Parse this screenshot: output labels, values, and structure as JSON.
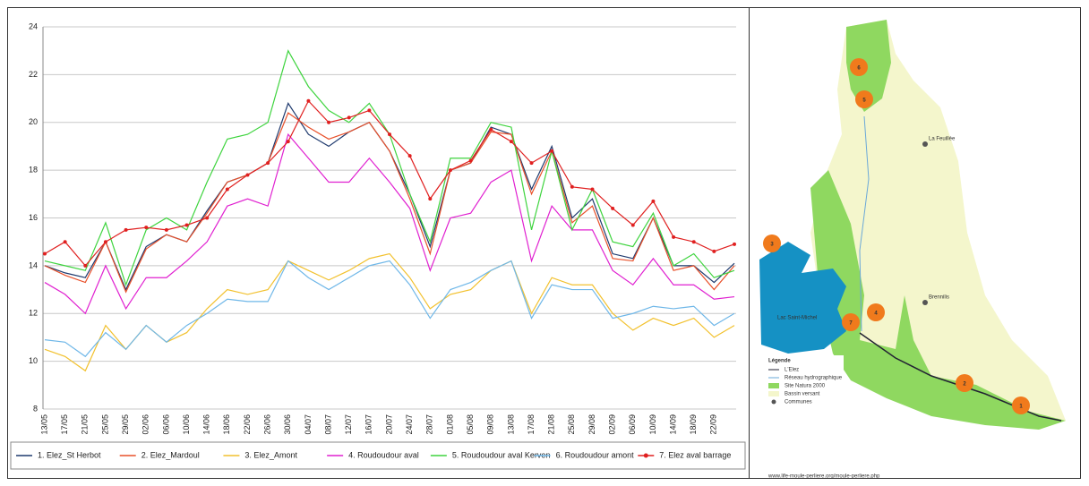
{
  "chart_data": {
    "type": "line",
    "categories": [
      "13/05",
      "17/05",
      "21/05",
      "25/05",
      "29/05",
      "02/06",
      "06/06",
      "10/06",
      "14/06",
      "18/06",
      "22/06",
      "26/06",
      "30/06",
      "04/07",
      "08/07",
      "12/07",
      "16/07",
      "20/07",
      "24/07",
      "28/07",
      "01/08",
      "05/08",
      "09/08",
      "13/08",
      "17/08",
      "21/08",
      "25/08",
      "29/08",
      "02/09",
      "06/09",
      "10/09",
      "14/09",
      "18/09",
      "22/09",
      null
    ],
    "ylim": [
      8,
      24
    ],
    "yticks": [
      8,
      10,
      12,
      14,
      16,
      18,
      20,
      22,
      24
    ],
    "grid": true,
    "legend": "bottom",
    "series": [
      {
        "name": "1. Elez_St Herbot",
        "color": "#1f3a6e",
        "markers": false,
        "values": [
          14.0,
          13.7,
          13.5,
          15.0,
          13.0,
          14.8,
          15.3,
          15.0,
          16.3,
          17.5,
          17.8,
          18.3,
          20.8,
          19.5,
          19.0,
          19.6,
          20.0,
          18.8,
          17.0,
          14.8,
          18.0,
          18.3,
          19.8,
          19.5,
          17.2,
          19.0,
          16.0,
          16.8,
          14.5,
          14.3,
          16.0,
          14.0,
          14.0,
          13.3,
          14.1
        ]
      },
      {
        "name": "2. Elez_Mardoul",
        "color": "#e8502a",
        "markers": false,
        "values": [
          14.0,
          13.6,
          13.3,
          15.0,
          12.9,
          14.7,
          15.3,
          15.0,
          16.2,
          17.5,
          17.8,
          18.3,
          20.4,
          19.8,
          19.3,
          19.6,
          20.0,
          18.8,
          16.8,
          14.5,
          18.0,
          18.3,
          19.6,
          19.5,
          17.0,
          18.8,
          15.8,
          16.5,
          14.3,
          14.2,
          16.0,
          13.8,
          14.0,
          13.0,
          14.0
        ]
      },
      {
        "name": "3. Elez_Amont",
        "color": "#f2c12e",
        "markers": false,
        "values": [
          10.5,
          10.2,
          9.6,
          11.5,
          10.5,
          11.5,
          10.8,
          11.2,
          12.2,
          13.0,
          12.8,
          13.0,
          14.2,
          13.8,
          13.4,
          13.8,
          14.3,
          14.5,
          13.5,
          12.2,
          12.8,
          13.0,
          13.8,
          14.2,
          12.0,
          13.5,
          13.2,
          13.2,
          12.0,
          11.3,
          11.8,
          11.5,
          11.8,
          11.0,
          11.5
        ]
      },
      {
        "name": "4. Roudoudour aval",
        "color": "#e020d0",
        "markers": false,
        "values": [
          13.3,
          12.8,
          12.0,
          14.0,
          12.2,
          13.5,
          13.5,
          14.2,
          15.0,
          16.5,
          16.8,
          16.5,
          19.5,
          18.5,
          17.5,
          17.5,
          18.5,
          17.5,
          16.4,
          13.8,
          16.0,
          16.2,
          17.5,
          18.0,
          14.2,
          16.5,
          15.5,
          15.5,
          13.8,
          13.2,
          14.3,
          13.2,
          13.2,
          12.6,
          12.7
        ]
      },
      {
        "name": "5. Roudoudour aval Kerven",
        "color": "#3ed43e",
        "markers": false,
        "values": [
          14.2,
          14.0,
          13.8,
          15.8,
          13.2,
          15.5,
          16.0,
          15.5,
          17.5,
          19.3,
          19.5,
          20.0,
          23.0,
          21.5,
          20.5,
          20.0,
          20.8,
          19.5,
          17.0,
          15.0,
          18.5,
          18.5,
          20.0,
          19.8,
          15.5,
          18.8,
          15.5,
          17.2,
          15.0,
          14.8,
          16.2,
          14.0,
          14.5,
          13.5,
          13.8
        ]
      },
      {
        "name": "6. Roudoudour amont",
        "color": "#6fb7e8",
        "markers": false,
        "values": [
          10.9,
          10.8,
          10.2,
          11.2,
          10.5,
          11.5,
          10.8,
          11.5,
          12.0,
          12.6,
          12.5,
          12.5,
          14.2,
          13.5,
          13.0,
          13.5,
          14.0,
          14.2,
          13.2,
          11.8,
          13.0,
          13.3,
          13.8,
          14.2,
          11.8,
          13.2,
          13.0,
          13.0,
          11.8,
          12.0,
          12.3,
          12.2,
          12.3,
          11.5,
          12.0
        ]
      },
      {
        "name": "7. Elez aval barrage",
        "color": "#e02020",
        "markers": true,
        "values": [
          14.5,
          15.0,
          14.0,
          15.0,
          15.5,
          15.6,
          15.5,
          15.7,
          16.0,
          17.2,
          17.8,
          18.3,
          19.2,
          20.9,
          20.0,
          20.2,
          20.5,
          19.5,
          18.6,
          16.8,
          18.0,
          18.4,
          19.7,
          19.2,
          18.3,
          18.8,
          17.3,
          17.2,
          16.4,
          15.7,
          16.7,
          15.2,
          15.0,
          14.6,
          14.9
        ]
      }
    ]
  },
  "map": {
    "legend_title": "Légende",
    "legend_items": [
      "L'Elez",
      "Réseau hydrographique",
      "Site Natura 2000",
      "Bassin versant",
      "Communes"
    ],
    "places": [
      "La Feuillée",
      "Brennilis",
      "Lac Saint-Michel"
    ],
    "markers": [
      "1",
      "2",
      "3",
      "4",
      "5",
      "6",
      "7"
    ],
    "url": "www.life-moule-perliere.org/moule-perliere.php"
  }
}
